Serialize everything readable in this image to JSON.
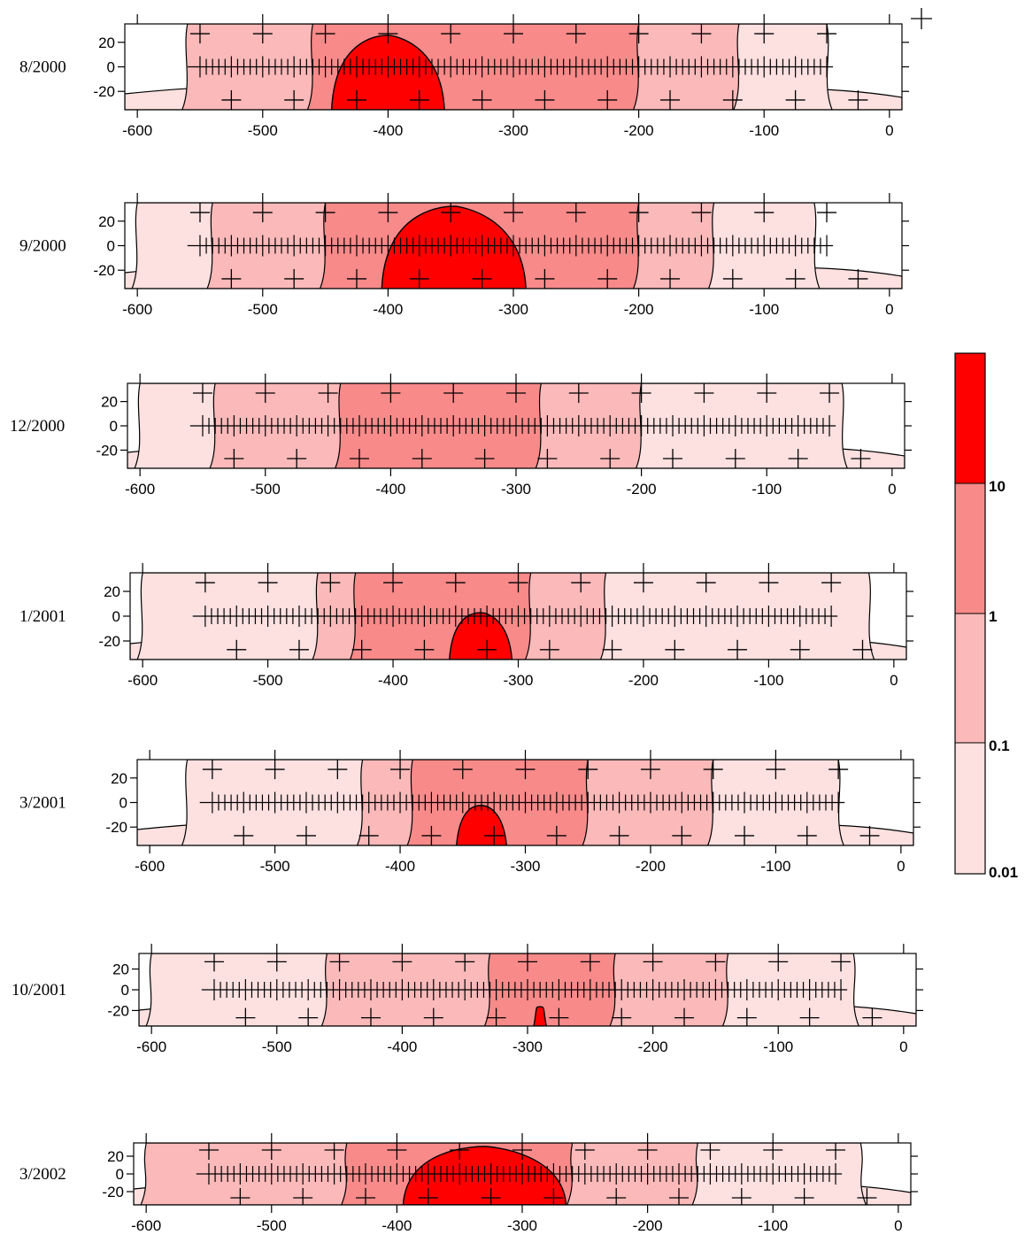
{
  "colors": {
    "band_0_01_0_1": "#fde0e0",
    "band_0_1_1": "#fbb9b9",
    "band_1_10": "#f88a8a",
    "band_10_plus": "#ff0000",
    "outline": "#000000"
  },
  "chart_data": [
    {
      "type": "heatmap",
      "date": "8/2000",
      "xlim": [
        -610,
        10
      ],
      "ylim": [
        -35,
        35
      ],
      "xticks": [
        "-600",
        "-500",
        "-400",
        "-300",
        "-200",
        "-100",
        "0"
      ],
      "yticks": [
        "20",
        "0",
        "-20"
      ],
      "bands": [
        {
          "x0": -560,
          "x1": -460,
          "level": 1
        },
        {
          "x0": -460,
          "x1": -200,
          "level": 2
        },
        {
          "x0": -200,
          "x1": -120,
          "level": 1
        },
        {
          "x0": -120,
          "x1": -50,
          "level": 0
        }
      ],
      "hotspot": {
        "x0": -445,
        "x1": -355,
        "level": 3
      }
    },
    {
      "type": "heatmap",
      "date": "9/2000",
      "xlim": [
        -610,
        10
      ],
      "ylim": [
        -35,
        35
      ],
      "xticks": [
        "-600",
        "-500",
        "-400",
        "-300",
        "-200",
        "-100",
        "0"
      ],
      "yticks": [
        "20",
        "0",
        "-20"
      ],
      "bands": [
        {
          "x0": -600,
          "x1": -540,
          "level": 0
        },
        {
          "x0": -540,
          "x1": -450,
          "level": 1
        },
        {
          "x0": -450,
          "x1": -200,
          "level": 2
        },
        {
          "x0": -200,
          "x1": -140,
          "level": 1
        },
        {
          "x0": -140,
          "x1": -60,
          "level": 0
        }
      ],
      "hotspot": {
        "x0": -405,
        "x1": -290,
        "level": 3
      }
    },
    {
      "type": "heatmap",
      "date": "12/2000",
      "xlim": [
        -610,
        10
      ],
      "ylim": [
        -35,
        35
      ],
      "xticks": [
        "-600",
        "-500",
        "-400",
        "-300",
        "-200",
        "-100",
        "0"
      ],
      "yticks": [
        "20",
        "0",
        "-20"
      ],
      "bands": [
        {
          "x0": -600,
          "x1": -540,
          "level": 0
        },
        {
          "x0": -540,
          "x1": -440,
          "level": 1
        },
        {
          "x0": -440,
          "x1": -280,
          "level": 2
        },
        {
          "x0": -280,
          "x1": -200,
          "level": 1
        },
        {
          "x0": -200,
          "x1": -40,
          "level": 0
        }
      ],
      "hotspot": null
    },
    {
      "type": "heatmap",
      "date": "1/2001",
      "xlim": [
        -610,
        10
      ],
      "ylim": [
        -35,
        35
      ],
      "xticks": [
        "-600",
        "-500",
        "-400",
        "-300",
        "-200",
        "-100",
        "0"
      ],
      "yticks": [
        "20",
        "0",
        "-20"
      ],
      "bands": [
        {
          "x0": -600,
          "x1": -460,
          "level": 0
        },
        {
          "x0": -460,
          "x1": -430,
          "level": 1
        },
        {
          "x0": -430,
          "x1": -290,
          "level": 2
        },
        {
          "x0": -290,
          "x1": -230,
          "level": 1
        },
        {
          "x0": -230,
          "x1": -20,
          "level": 0
        }
      ],
      "hotspot": {
        "x0": -355,
        "x1": -305,
        "level": 3
      }
    },
    {
      "type": "heatmap",
      "date": "3/2001",
      "xlim": [
        -610,
        10
      ],
      "ylim": [
        -35,
        35
      ],
      "xticks": [
        "-600",
        "-500",
        "-400",
        "-300",
        "-200",
        "-100",
        "0"
      ],
      "yticks": [
        "20",
        "0",
        "-20"
      ],
      "bands": [
        {
          "x0": -570,
          "x1": -430,
          "level": 0
        },
        {
          "x0": -430,
          "x1": -390,
          "level": 1
        },
        {
          "x0": -390,
          "x1": -250,
          "level": 2
        },
        {
          "x0": -250,
          "x1": -150,
          "level": 1
        },
        {
          "x0": -150,
          "x1": -50,
          "level": 0
        }
      ],
      "hotspot": {
        "x0": -355,
        "x1": -315,
        "level": 3
      }
    },
    {
      "type": "heatmap",
      "date": "10/2001",
      "xlim": [
        -610,
        10
      ],
      "ylim": [
        -35,
        35
      ],
      "xticks": [
        "-600",
        "-500",
        "-400",
        "-300",
        "-200",
        "-100",
        "0"
      ],
      "yticks": [
        "20",
        "0",
        "-20"
      ],
      "bands": [
        {
          "x0": -600,
          "x1": -460,
          "level": 0
        },
        {
          "x0": -460,
          "x1": -330,
          "level": 1
        },
        {
          "x0": -330,
          "x1": -230,
          "level": 2
        },
        {
          "x0": -230,
          "x1": -140,
          "level": 1
        },
        {
          "x0": -140,
          "x1": -40,
          "level": 0
        }
      ],
      "hotspot": {
        "x0": -295,
        "x1": -285,
        "level": 3
      }
    },
    {
      "type": "heatmap",
      "date": "3/2002",
      "xlim": [
        -610,
        10
      ],
      "ylim": [
        -35,
        35
      ],
      "xticks": [
        "-600",
        "-500",
        "-400",
        "-300",
        "-200",
        "-100",
        "0"
      ],
      "yticks": [
        "20",
        "0",
        "-20"
      ],
      "bands": [
        {
          "x0": -600,
          "x1": -440,
          "level": 1
        },
        {
          "x0": -440,
          "x1": -260,
          "level": 2
        },
        {
          "x0": -260,
          "x1": -160,
          "level": 1
        },
        {
          "x0": -160,
          "x1": -30,
          "level": 0
        }
      ],
      "hotspot": {
        "x0": -395,
        "x1": -265,
        "level": 3
      }
    }
  ],
  "legend": {
    "labels": [
      "0.01",
      "0.1",
      "1",
      "10"
    ]
  }
}
